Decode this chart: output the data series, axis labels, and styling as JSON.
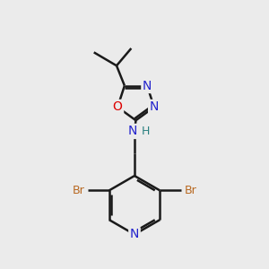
{
  "bg_color": "#ebebeb",
  "bond_color": "#1a1a1a",
  "bond_width": 1.8,
  "atom_colors": {
    "C": "#1a1a1a",
    "N": "#2222cc",
    "O": "#dd0000",
    "Br": "#b86820",
    "H": "#2a8080"
  },
  "font_size": 9,
  "figsize": [
    3.0,
    3.0
  ],
  "dpi": 100
}
